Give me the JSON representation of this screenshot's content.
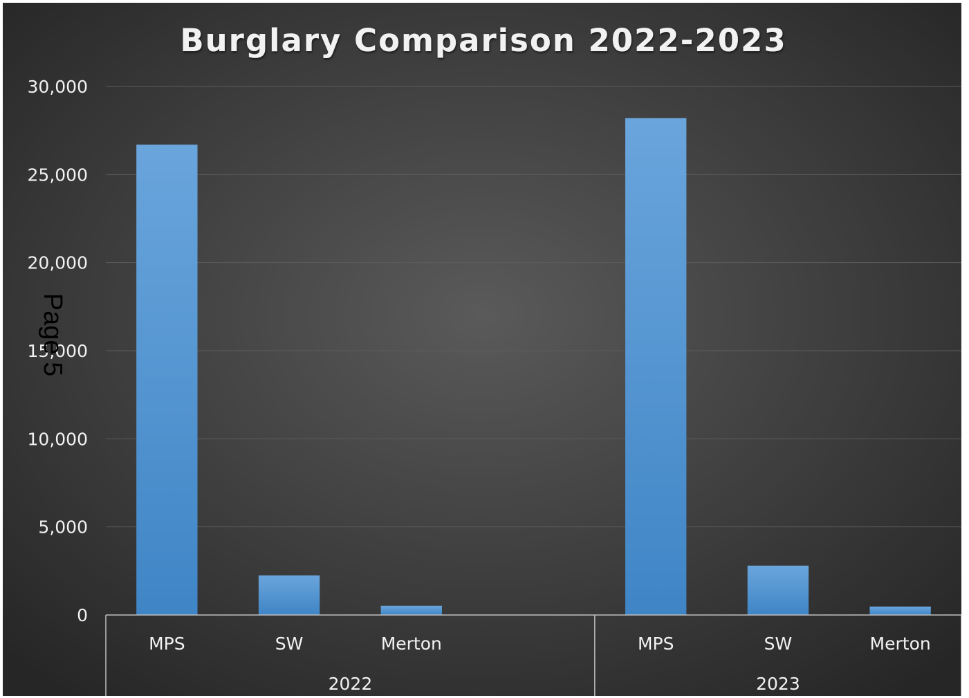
{
  "page_stamp": "Page 5",
  "colors": {
    "background_center": "#5a5a5a",
    "background_edge": "#262626",
    "bar_top": "#6aa5dc",
    "bar_bottom": "#3f85c6",
    "gridline": "#5c5c5c",
    "axis_line": "#bfbfbf",
    "text": "#f2f2f2"
  },
  "chart_data": {
    "type": "bar",
    "title": "Burglary Comparison 2022-2023",
    "xlabel": "",
    "ylabel": "",
    "ylim": [
      0,
      30000
    ],
    "y_ticks": [
      0,
      5000,
      10000,
      15000,
      20000,
      25000,
      30000
    ],
    "y_tick_labels": [
      "0",
      "5,000",
      "10,000",
      "15,000",
      "20,000",
      "25,000",
      "30,000"
    ],
    "grid": true,
    "legend": "none",
    "groups": [
      {
        "label": "2022",
        "categories": [
          "MPS",
          "SW",
          "Merton",
          ""
        ],
        "values": [
          26700,
          2250,
          520,
          null
        ]
      },
      {
        "label": "2023",
        "categories": [
          "MPS",
          "SW",
          "Merton"
        ],
        "values": [
          28200,
          2800,
          480
        ]
      }
    ]
  }
}
